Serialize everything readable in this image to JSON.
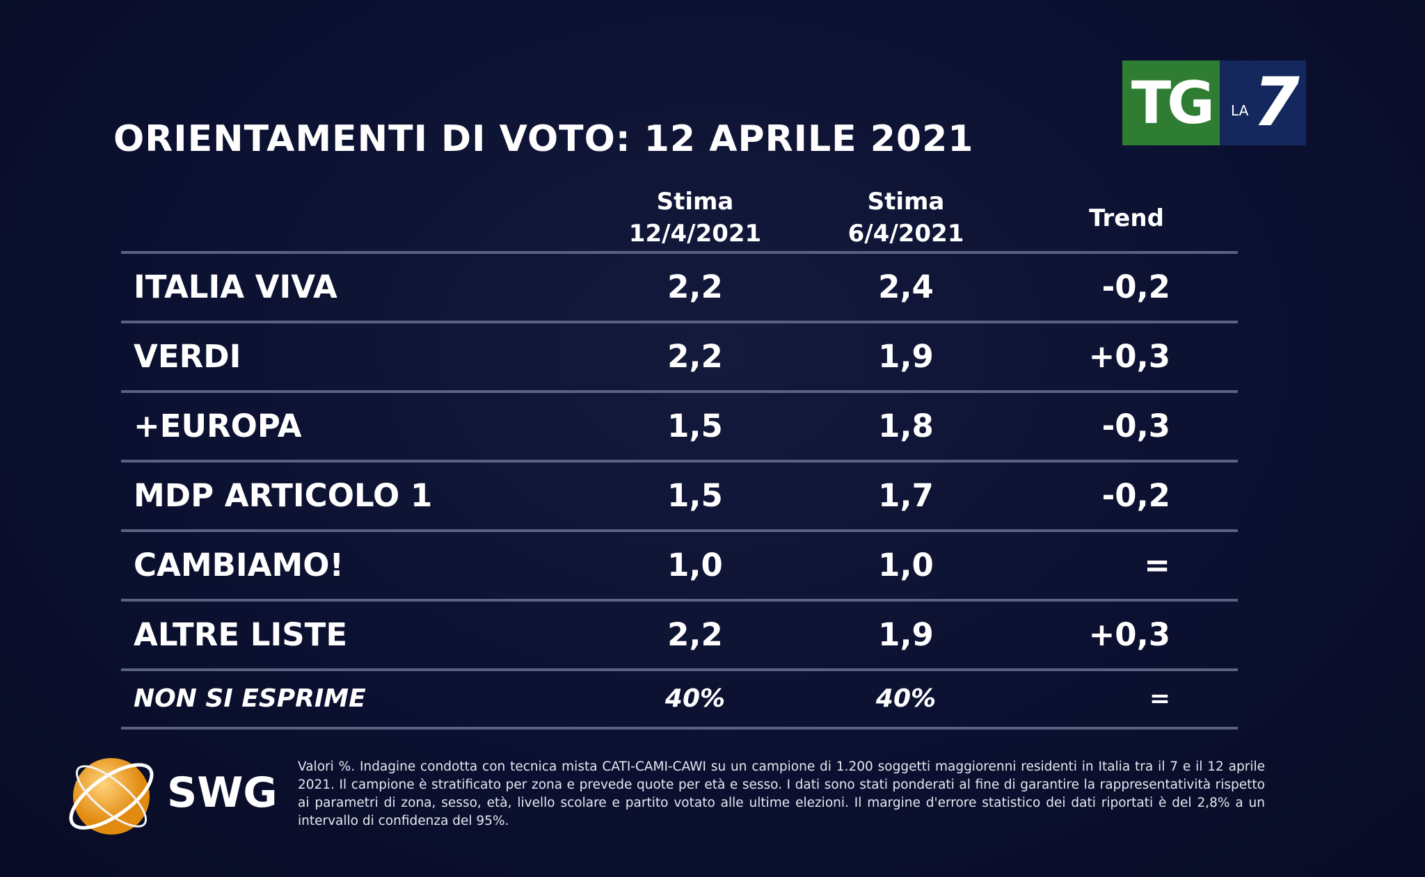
{
  "header": {
    "title": "ORIENTAMENTI DI VOTO: 12 APRILE 2021",
    "logo": {
      "tg": "TG",
      "la": "LA",
      "seven": "7"
    }
  },
  "table": {
    "columns": [
      {
        "label": "Stima",
        "date": "12/4/2021"
      },
      {
        "label": "Stima",
        "date": "6/4/2021"
      },
      {
        "label": "Trend"
      }
    ],
    "rows": [
      [
        "ITALIA VIVA",
        "2,2",
        "2,4",
        "-0,2"
      ],
      [
        "VERDI",
        "2,2",
        "1,9",
        "+0,3"
      ],
      [
        "+EUROPA",
        "1,5",
        "1,8",
        "-0,3"
      ],
      [
        "MDP ARTICOLO 1",
        "1,5",
        "1,7",
        "-0,2"
      ],
      [
        "CAMBIAMO!",
        "1,0",
        "1,0",
        "="
      ],
      [
        "ALTRE LISTE",
        "2,2",
        "1,9",
        "+0,3"
      ],
      [
        "NON SI ESPRIME",
        "40%",
        "40%",
        "="
      ]
    ]
  },
  "footer": {
    "brand": "SWG",
    "note": "Valori %. Indagine condotta con tecnica mista CATI-CAMI-CAWI su un campione di 1.200 soggetti maggiorenni residenti in Italia tra il 7 e il 12 aprile 2021. Il campione è stratificato per zona e prevede quote per età e sesso. I dati sono stati ponderati al fine di garantire la rappresentatività rispetto ai parametri di zona, sesso, età, livello scolare e partito votato alle ultime elezioni. Il margine d'errore statistico dei dati riportati è del 2,8% a un intervallo di confidenza del 95%."
  }
}
